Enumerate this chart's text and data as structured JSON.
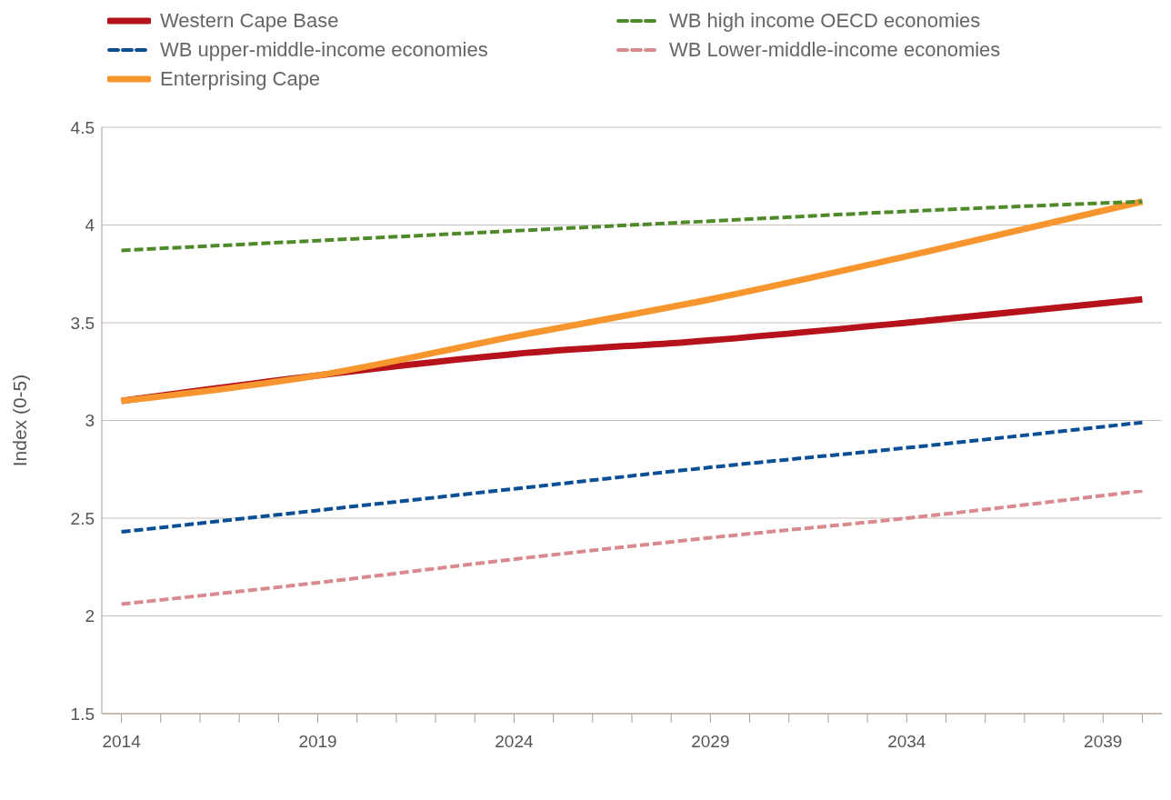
{
  "chart_data": {
    "type": "line",
    "ylabel": "Index (0-5)",
    "xlim": [
      2013.5,
      2040.5
    ],
    "xticks": [
      2014,
      {
        "value": 2015,
        "label": null
      },
      {
        "value": 2016,
        "label": null
      },
      {
        "value": 2017,
        "label": null
      },
      {
        "value": 2018,
        "label": null
      },
      2019,
      {
        "value": 2020,
        "label": null
      },
      {
        "value": 2021,
        "label": null
      },
      {
        "value": 2022,
        "label": null
      },
      {
        "value": 2023,
        "label": null
      },
      2024,
      {
        "value": 2025,
        "label": null
      },
      {
        "value": 2026,
        "label": null
      },
      {
        "value": 2027,
        "label": null
      },
      {
        "value": 2028,
        "label": null
      },
      2029,
      {
        "value": 2030,
        "label": null
      },
      {
        "value": 2031,
        "label": null
      },
      {
        "value": 2032,
        "label": null
      },
      {
        "value": 2033,
        "label": null
      },
      2034,
      {
        "value": 2035,
        "label": null
      },
      {
        "value": 2036,
        "label": null
      },
      {
        "value": 2037,
        "label": null
      },
      {
        "value": 2038,
        "label": null
      },
      2039,
      {
        "value": 2040,
        "label": null
      }
    ],
    "ylim": [
      1.5,
      4.5
    ],
    "yticks": [
      1.5,
      2,
      2.5,
      3,
      3.5,
      4,
      4.5
    ],
    "grid": "y",
    "legend": "top",
    "marker": "none",
    "x": [
      2014,
      2019,
      2024,
      2029,
      2034,
      2040
    ],
    "series": [
      {
        "name": "Western Cape Base",
        "color": "#b5121b",
        "line_style": "solid",
        "values": [
          3.1,
          3.23,
          3.34,
          3.41,
          3.5,
          3.62
        ]
      },
      {
        "name": "WB high income OECD economies",
        "color": "#4f8a2a",
        "line_style": "dashed",
        "values": [
          3.87,
          3.92,
          3.97,
          4.02,
          4.07,
          4.12
        ]
      },
      {
        "name": "WB upper-middle-income economies",
        "color": "#0a4f96",
        "line_style": "dashed",
        "values": [
          2.43,
          2.54,
          2.65,
          2.76,
          2.86,
          2.99
        ]
      },
      {
        "name": "WB Lower-middle-income economies",
        "color": "#d98a8f",
        "line_style": "dashed",
        "values": [
          2.06,
          2.17,
          2.29,
          2.4,
          2.5,
          2.64
        ]
      },
      {
        "name": "Enterprising Cape",
        "color": "#f7962e",
        "line_style": "solid",
        "values": [
          3.1,
          3.23,
          3.43,
          3.62,
          3.84,
          4.12
        ]
      }
    ]
  }
}
